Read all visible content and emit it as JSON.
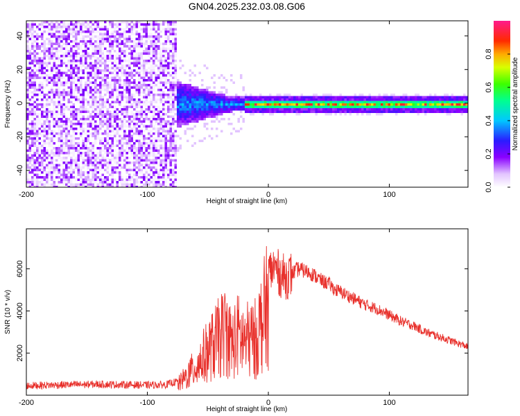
{
  "title": "GN04.2025.232.03.08.G06",
  "colors": {
    "signal": "#e8302b",
    "background": "#ffffff",
    "axis": "#000000"
  },
  "chart_data": [
    {
      "type": "heatmap",
      "title": "GN04.2025.232.03.08.G06",
      "xlabel": "Height of straight line (km)",
      "ylabel": "Frequency (Hz)",
      "xlim": [
        -200,
        165
      ],
      "ylim": [
        -50,
        49
      ],
      "x_ticks": [
        -200,
        -100,
        0,
        100
      ],
      "y_ticks": [
        -40,
        -20,
        0,
        20,
        40
      ],
      "grid": false,
      "colorbar": {
        "label": "Normalized spectral amplitude",
        "range": [
          0.0,
          1.0
        ],
        "ticks": [
          0.0,
          0.2,
          0.4,
          0.6,
          0.8
        ],
        "colormap": "white-violet-blue-cyan-green-yellow-red-pink"
      },
      "description_regions": [
        {
          "x_range": [
            -200,
            -77
          ],
          "freq_range": [
            -50,
            49
          ],
          "amplitude": 0.15
        },
        {
          "x_range": [
            -77,
            -20
          ],
          "freq_range": [
            -12,
            12
          ],
          "amplitude": 0.35
        },
        {
          "x_range": [
            -20,
            165
          ],
          "freq_range": [
            -2,
            2
          ],
          "amplitude": 0.8
        }
      ]
    },
    {
      "type": "line",
      "xlabel": "Height of straight line (km)",
      "ylabel": "SNR (10 * v/v)",
      "xlim": [
        -200,
        165
      ],
      "ylim": [
        0,
        7900
      ],
      "x_ticks": [
        -200,
        -100,
        0,
        100
      ],
      "y_ticks": [
        2000,
        4000,
        6000
      ],
      "grid": false,
      "series": [
        {
          "x": [
            -200,
            -180,
            -160,
            -140,
            -120,
            -100,
            -85,
            -75,
            -70,
            -65,
            -60,
            -55,
            -50,
            -45,
            -40,
            -35,
            -30,
            -25,
            -20,
            -15,
            -10,
            -5,
            0,
            5,
            10,
            15,
            20,
            25,
            30,
            35,
            40,
            45,
            50,
            55,
            60,
            70,
            80,
            90,
            100,
            110,
            120,
            130,
            140,
            150,
            165
          ],
          "y": [
            450,
            480,
            500,
            520,
            500,
            480,
            500,
            650,
            1000,
            1400,
            1800,
            2300,
            2800,
            3200,
            3700,
            4100,
            3200,
            3800,
            3400,
            3500,
            3600,
            4800,
            5800,
            6100,
            5700,
            5600,
            5800,
            6000,
            5900,
            5800,
            5600,
            5400,
            5300,
            5000,
            4900,
            4600,
            4300,
            4100,
            3800,
            3500,
            3300,
            3000,
            2800,
            2600,
            2300
          ]
        }
      ]
    }
  ]
}
